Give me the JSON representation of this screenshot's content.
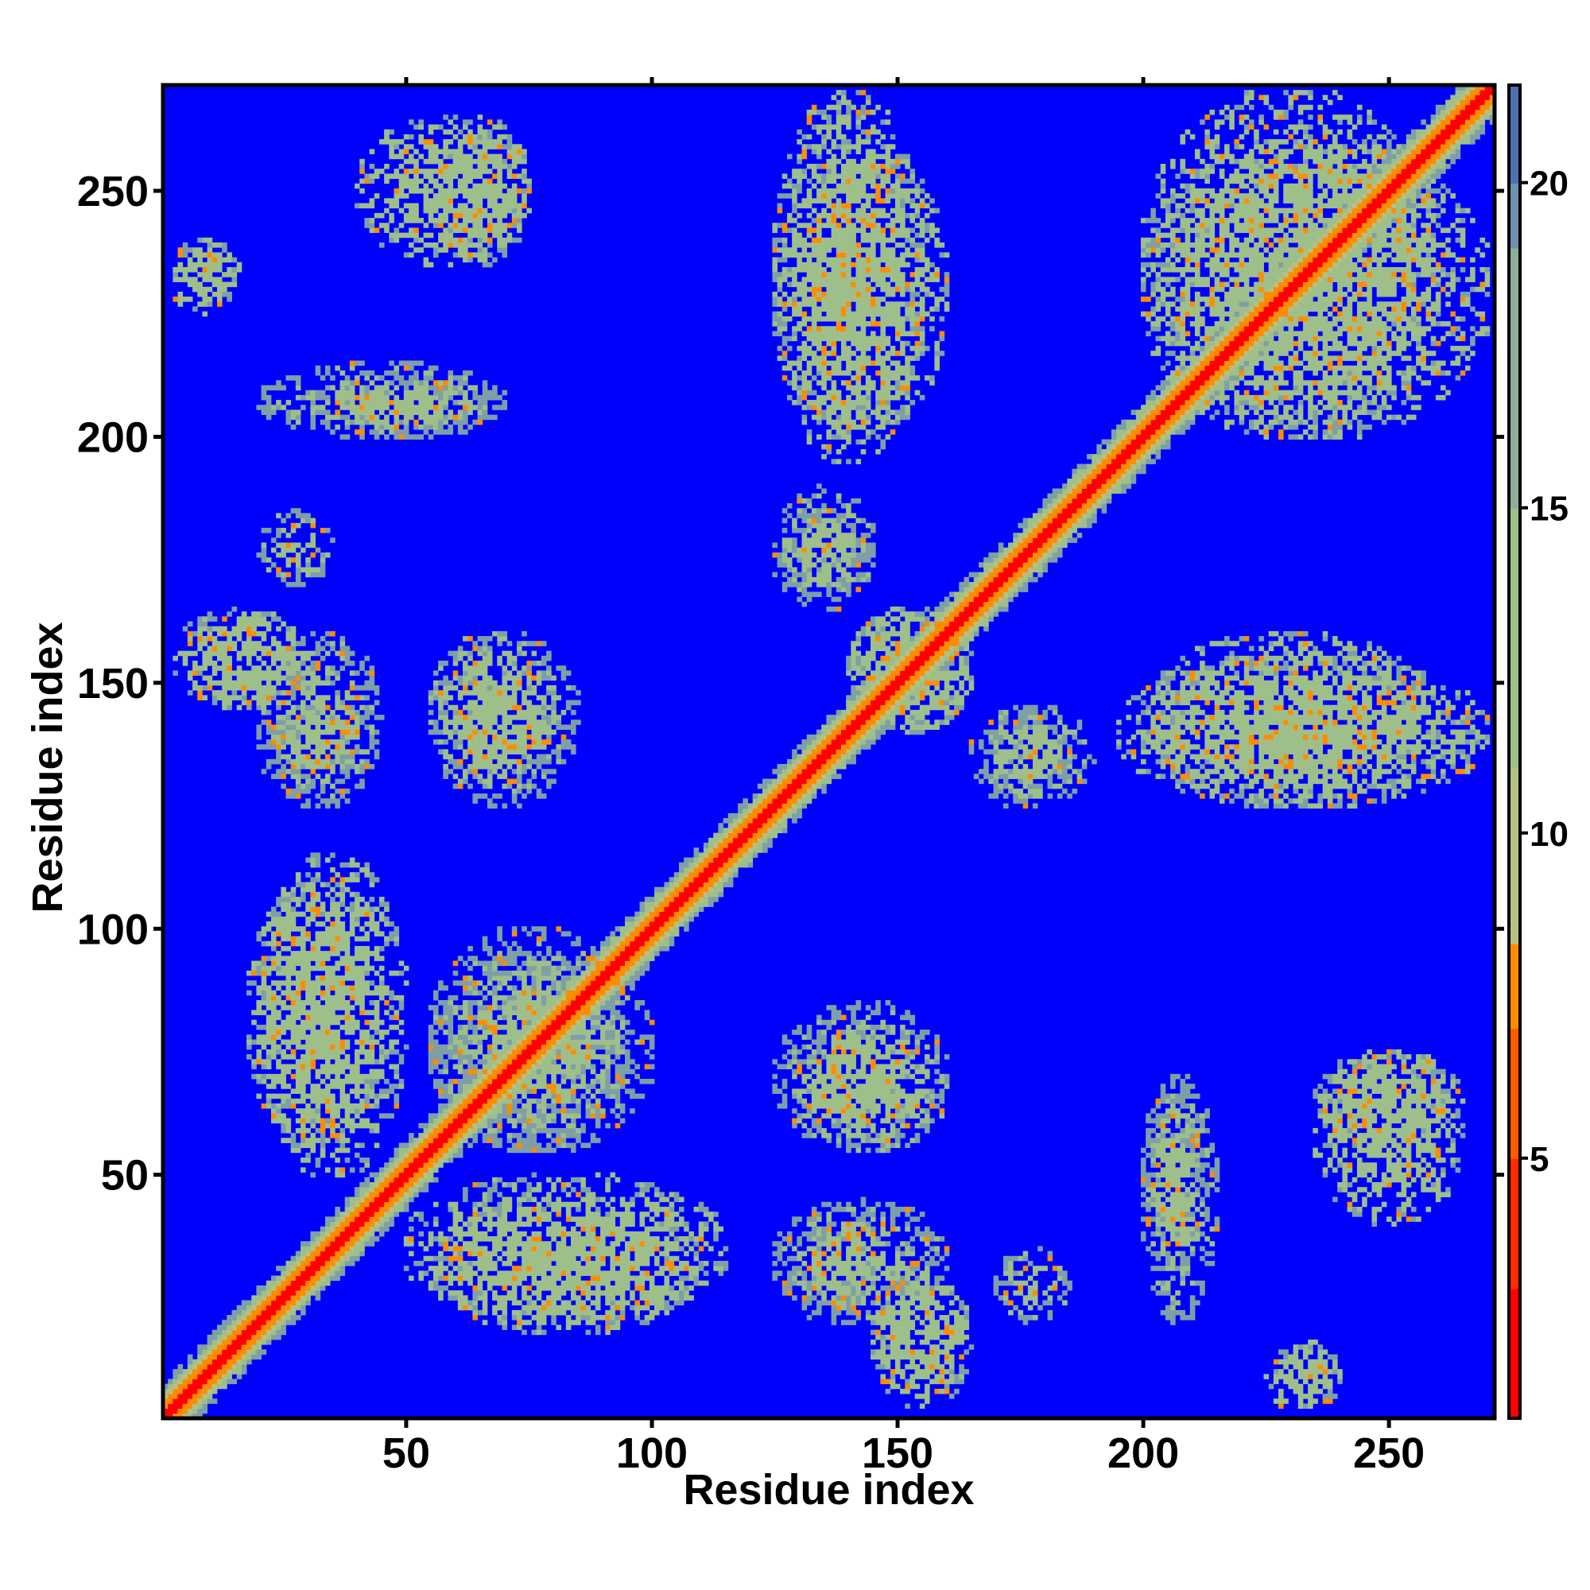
{
  "chart_data": {
    "type": "heatmap",
    "title": "",
    "xlabel": "Residue index",
    "ylabel": "Residue index",
    "xlim": [
      1,
      271
    ],
    "ylim": [
      1,
      271
    ],
    "x_ticks": [
      "50",
      "100",
      "150",
      "200",
      "250"
    ],
    "y_ticks": [
      "50",
      "100",
      "150",
      "200",
      "250"
    ],
    "colorbar": {
      "ticks": [
        "5",
        "10",
        "15",
        "20"
      ],
      "range": [
        1,
        21.5
      ],
      "colors": {
        "low": "#ff0000",
        "mid_low": "#ff8c00",
        "mid": "#9fbf8a",
        "high": "#4f6fb0",
        "background": "#0000ff"
      }
    },
    "diagonal_band_width": 6,
    "contact_clusters": [
      {
        "x": [
          3,
          16
        ],
        "y": [
          228,
          240
        ],
        "value": 11
      },
      {
        "x": [
          55,
          75
        ],
        "y": [
          235,
          265
        ],
        "value": 11
      },
      {
        "x": [
          30,
          70
        ],
        "y": [
          200,
          212
        ],
        "value": 12
      },
      {
        "x": [
          3,
          30
        ],
        "y": [
          145,
          165
        ],
        "value": 11
      },
      {
        "x": [
          20,
          40
        ],
        "y": [
          128,
          145
        ],
        "value": 12
      },
      {
        "x": [
          55,
          80
        ],
        "y": [
          130,
          160
        ],
        "value": 11
      },
      {
        "x": [
          18,
          45
        ],
        "y": [
          55,
          110
        ],
        "value": 11
      },
      {
        "x": [
          55,
          100
        ],
        "y": [
          55,
          95
        ],
        "value": 12
      },
      {
        "x": [
          50,
          115
        ],
        "y": [
          20,
          50
        ],
        "value": 11
      },
      {
        "x": [
          125,
          155
        ],
        "y": [
          195,
          270
        ],
        "value": 11
      },
      {
        "x": [
          125,
          145
        ],
        "y": [
          165,
          185
        ],
        "value": 12
      },
      {
        "x": [
          140,
          165
        ],
        "y": [
          140,
          165
        ],
        "value": 11
      },
      {
        "x": [
          168,
          190
        ],
        "y": [
          125,
          145
        ],
        "value": 12
      },
      {
        "x": [
          200,
          260
        ],
        "y": [
          125,
          160
        ],
        "value": 11
      },
      {
        "x": [
          200,
          260
        ],
        "y": [
          200,
          270
        ],
        "value": 11
      },
      {
        "x": [
          125,
          160
        ],
        "y": [
          55,
          85
        ],
        "value": 12
      },
      {
        "x": [
          125,
          160
        ],
        "y": [
          20,
          45
        ],
        "value": 12
      },
      {
        "x": [
          145,
          165
        ],
        "y": [
          5,
          30
        ],
        "value": 11
      },
      {
        "x": [
          170,
          185
        ],
        "y": [
          20,
          35
        ],
        "value": 12
      },
      {
        "x": [
          200,
          215
        ],
        "y": [
          20,
          70
        ],
        "value": 12
      },
      {
        "x": [
          235,
          265
        ],
        "y": [
          40,
          75
        ],
        "value": 11
      },
      {
        "x": [
          225,
          240
        ],
        "y": [
          2,
          15
        ],
        "value": 11
      }
    ]
  }
}
